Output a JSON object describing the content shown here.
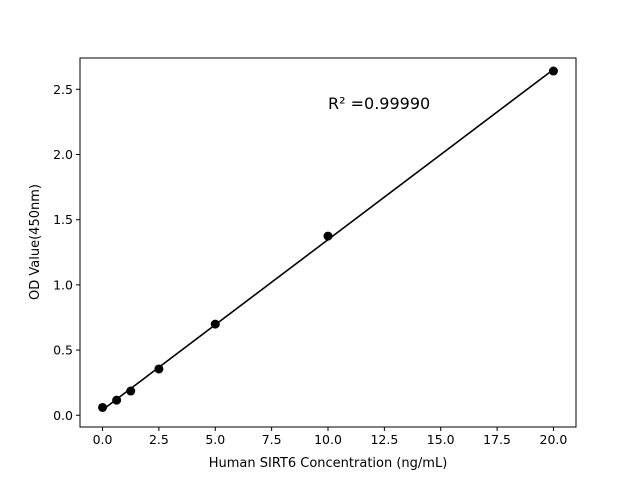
{
  "chart_data": {
    "type": "scatter",
    "xlabel": "Human SIRT6 Concentration (ng/mL)",
    "ylabel": "OD Value(450nm)",
    "xlim": [
      -1,
      21
    ],
    "ylim": [
      -0.09,
      2.74
    ],
    "x_ticks": [
      "0.0",
      "2.5",
      "5.0",
      "7.5",
      "10.0",
      "12.5",
      "15.0",
      "17.5",
      "20.0"
    ],
    "y_ticks": [
      "0.0",
      "0.5",
      "1.0",
      "1.5",
      "2.0",
      "2.5"
    ],
    "grid": false,
    "annotation": "R² =0.99990",
    "series": [
      {
        "x": [
          0,
          0.625,
          1.25,
          2.5,
          5,
          10,
          20
        ],
        "y": [
          0.06,
          0.116,
          0.186,
          0.355,
          0.699,
          1.374,
          2.64
        ],
        "color": "#000000",
        "fit": "linear"
      }
    ]
  }
}
